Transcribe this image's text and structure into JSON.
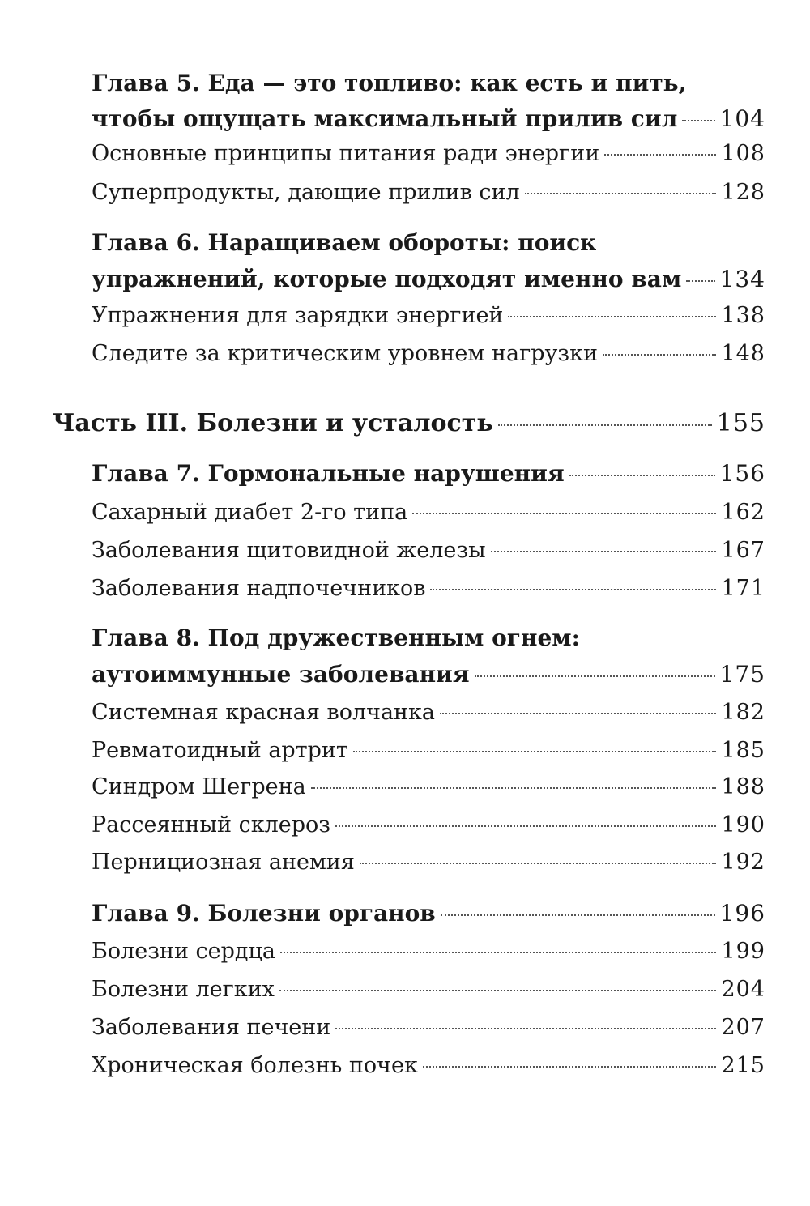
{
  "entries": {
    "ch5": {
      "label": "Глава 5.",
      "line1": "Еда — это топливо: как есть и пить,",
      "line2": "чтобы ощущать максимальный прилив сил",
      "page": "104"
    },
    "ch5s1": {
      "title": "Основные принципы питания ради энергии",
      "page": "108"
    },
    "ch5s2": {
      "title": "Суперпродукты, дающие прилив сил",
      "page": "128"
    },
    "ch6": {
      "label": "Глава 6.",
      "line1": "Наращиваем обороты: поиск",
      "line2": "упражнений, которые подходят именно вам",
      "page": "134"
    },
    "ch6s1": {
      "title": "Упражнения для зарядки энергией",
      "page": "138"
    },
    "ch6s2": {
      "title": "Следите за критическим уровнем нагрузки",
      "page": "148"
    },
    "part3": {
      "title": "Часть III. Болезни и усталость",
      "page": "155"
    },
    "ch7": {
      "label": "Глава 7.",
      "line1": "Гормональные нарушения",
      "page": "156"
    },
    "ch7s1": {
      "title": "Сахарный диабет 2-го типа",
      "page": "162"
    },
    "ch7s2": {
      "title": "Заболевания щитовидной железы",
      "page": "167"
    },
    "ch7s3": {
      "title": "Заболевания надпочечников",
      "page": "171"
    },
    "ch8": {
      "label": "Глава 8.",
      "line1": "Под дружественным огнем:",
      "line2": "аутоиммунные заболевания",
      "page": "175"
    },
    "ch8s1": {
      "title": "Системная красная волчанка",
      "page": "182"
    },
    "ch8s2": {
      "title": "Ревматоидный артрит",
      "page": "185"
    },
    "ch8s3": {
      "title": "Синдром Шегрена",
      "page": "188"
    },
    "ch8s4": {
      "title": "Рассеянный склероз",
      "page": "190"
    },
    "ch8s5": {
      "title": "Пернициозная анемия",
      "page": "192"
    },
    "ch9": {
      "label": "Глава 9.",
      "line1": "Болезни органов",
      "page": "196"
    },
    "ch9s1": {
      "title": "Болезни сердца",
      "page": "199"
    },
    "ch9s2": {
      "title": "Болезни легких",
      "page": "204"
    },
    "ch9s3": {
      "title": "Заболевания печени",
      "page": "207"
    },
    "ch9s4": {
      "title": "Хроническая болезнь почек",
      "page": "215"
    }
  }
}
